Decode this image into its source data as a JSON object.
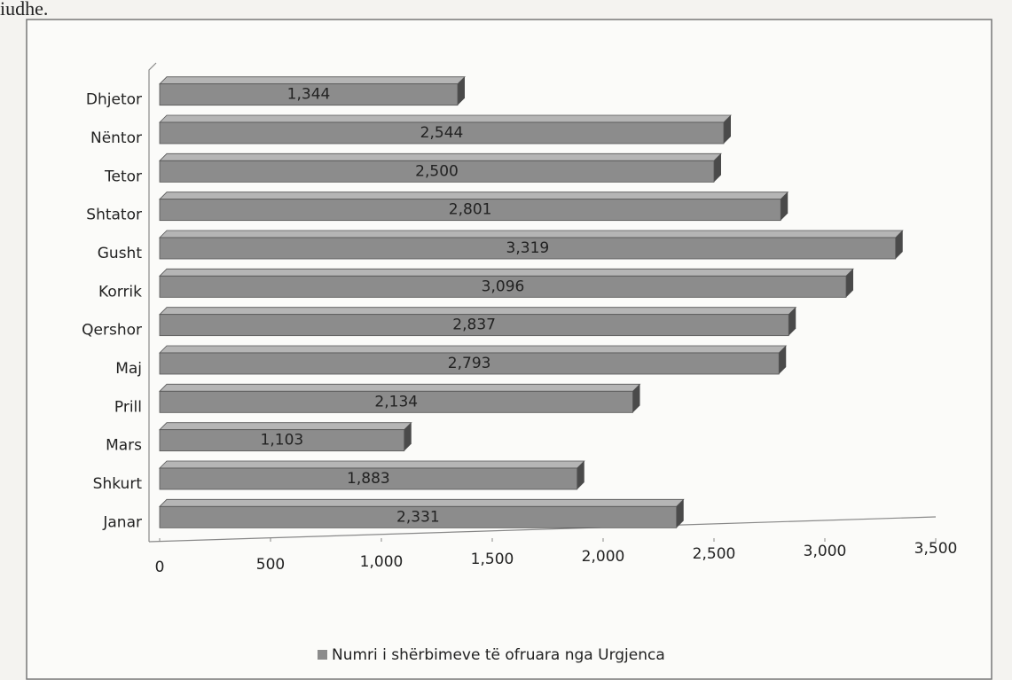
{
  "page_text": "iudhe.",
  "chart_data": {
    "type": "bar",
    "orientation": "horizontal",
    "categories": [
      "Janar",
      "Shkurt",
      "Mars",
      "Prill",
      "Maj",
      "Qershor",
      "Korrik",
      "Gusht",
      "Shtator",
      "Tetor",
      "Nëntor",
      "Dhjetor"
    ],
    "series": [
      {
        "name": "Numri i shërbimeve të ofruara nga Urgjenca",
        "color": "#8c8c8c",
        "values": [
          2331,
          1883,
          1103,
          2134,
          2793,
          2837,
          3096,
          3319,
          2801,
          2500,
          2544,
          1344
        ],
        "value_labels": [
          "2,331",
          "1,883",
          "1,103",
          "2,134",
          "2,793",
          "2,837",
          "3,096",
          "3,319",
          "2,801",
          "2,500",
          "2,544",
          "1,344"
        ]
      }
    ],
    "xlim": [
      0,
      3500
    ],
    "xticks": [
      0,
      500,
      {
        "value": 1000,
        "label": "1,000"
      },
      {
        "value": 1500,
        "label": "1,500"
      },
      {
        "value": 2000,
        "label": "2,000"
      },
      {
        "value": 2500,
        "label": "2,500"
      },
      {
        "value": 3000,
        "label": "3,000"
      },
      {
        "value": 3500,
        "label": "3,500"
      }
    ],
    "legend": "bottom"
  }
}
